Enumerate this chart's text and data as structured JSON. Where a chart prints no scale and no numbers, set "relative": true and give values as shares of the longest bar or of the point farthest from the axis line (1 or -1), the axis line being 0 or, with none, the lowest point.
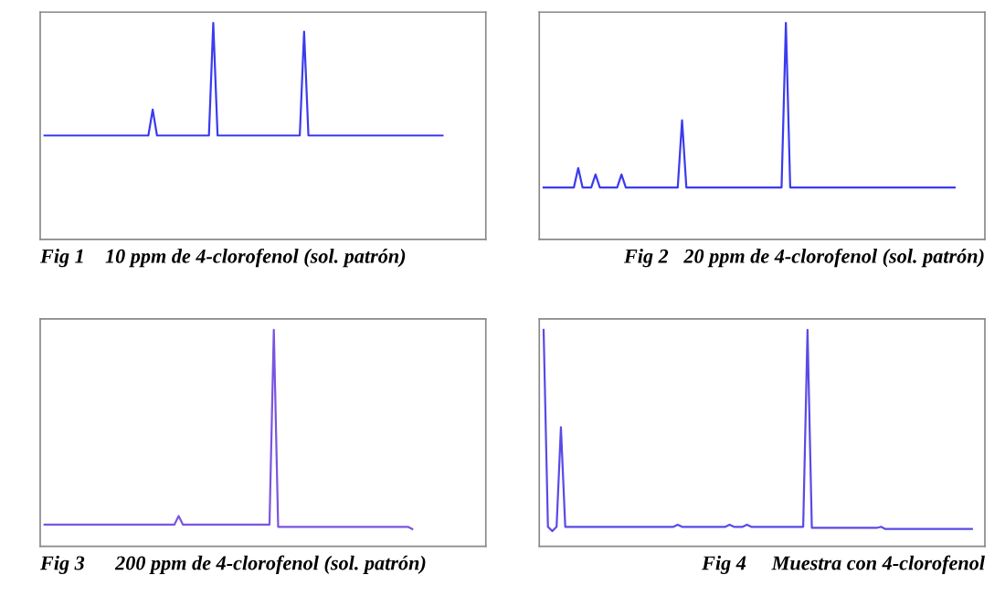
{
  "chart_data": [
    {
      "type": "line",
      "title": "Fig 1    10 ppm de 4-clorofenol (sol. patrón)",
      "relative": true,
      "categories": [
        null,
        null,
        null,
        null,
        null,
        null,
        null,
        null,
        null,
        null,
        null,
        null,
        null,
        null,
        null,
        null,
        null,
        null,
        null,
        null,
        null,
        null,
        null,
        null,
        null,
        null,
        null,
        null,
        null,
        null,
        null,
        null,
        null,
        null,
        null,
        null,
        null,
        null,
        null,
        null,
        null,
        null,
        null,
        null,
        null,
        null,
        null,
        null,
        null,
        null,
        null,
        null,
        null,
        null,
        null,
        null,
        null,
        null,
        null,
        null,
        null,
        null,
        null,
        null,
        null,
        null,
        null,
        null,
        null,
        null,
        null,
        null,
        null,
        null,
        null,
        null,
        null,
        null,
        null,
        null,
        null,
        null,
        null,
        null,
        null,
        null,
        null,
        null,
        null,
        null,
        null,
        null,
        null,
        null,
        null,
        null,
        null,
        null,
        null,
        null
      ],
      "series": [
        {
          "color": "#3b3bf0",
          "values": [
            0.48,
            0.48,
            0.48,
            0.48,
            0.48,
            0.48,
            0.48,
            0.48,
            0.48,
            0.48,
            0.48,
            0.48,
            0.48,
            0.48,
            0.48,
            0.48,
            0.48,
            0.48,
            0.48,
            0.48,
            0.48,
            0.48,
            0.48,
            0.48,
            0.48,
            0.6,
            0.48,
            0.48,
            0.48,
            0.48,
            0.48,
            0.48,
            0.48,
            0.48,
            0.48,
            0.48,
            0.48,
            0.48,
            0.48,
            1,
            0.48,
            0.48,
            0.48,
            0.48,
            0.48,
            0.48,
            0.48,
            0.48,
            0.48,
            0.48,
            0.48,
            0.48,
            0.48,
            0.48,
            0.48,
            0.48,
            0.48,
            0.48,
            0.48,
            0.48,
            0.96,
            0.48,
            0.48,
            0.48,
            0.48,
            0.48,
            0.48,
            0.48,
            0.48,
            0.48,
            0.48,
            0.48,
            0.48,
            0.48,
            0.48,
            0.48,
            0.48,
            0.48,
            0.48,
            0.48,
            0.48,
            0.48,
            0.48,
            0.48,
            0.48,
            0.48,
            0.48,
            0.48,
            0.48,
            0.48,
            0.48,
            0.48,
            0.48,
            null,
            null,
            null,
            null,
            null,
            null,
            null
          ]
        }
      ]
    },
    {
      "type": "line",
      "title": "Fig 2   20 ppm de 4-clorofenol (sol. patrón)",
      "relative": true,
      "categories": [
        null,
        null,
        null,
        null,
        null,
        null,
        null,
        null,
        null,
        null,
        null,
        null,
        null,
        null,
        null,
        null,
        null,
        null,
        null,
        null,
        null,
        null,
        null,
        null,
        null,
        null,
        null,
        null,
        null,
        null,
        null,
        null,
        null,
        null,
        null,
        null,
        null,
        null,
        null,
        null,
        null,
        null,
        null,
        null,
        null,
        null,
        null,
        null,
        null,
        null,
        null,
        null,
        null,
        null,
        null,
        null,
        null,
        null,
        null,
        null,
        null,
        null,
        null,
        null,
        null,
        null,
        null,
        null,
        null,
        null,
        null,
        null,
        null,
        null,
        null,
        null,
        null,
        null,
        null,
        null,
        null,
        null,
        null,
        null,
        null,
        null,
        null,
        null,
        null,
        null,
        null,
        null,
        null,
        null,
        null,
        null,
        null,
        null,
        null,
        null
      ],
      "series": [
        {
          "color": "#3b3bf0",
          "values": [
            0.24,
            0.24,
            0.24,
            0.24,
            0.24,
            0.24,
            0.24,
            0.24,
            0.33,
            0.24,
            0.24,
            0.24,
            0.3,
            0.24,
            0.24,
            0.24,
            0.24,
            0.24,
            0.3,
            0.24,
            0.24,
            0.24,
            0.24,
            0.24,
            0.24,
            0.24,
            0.24,
            0.24,
            0.24,
            0.24,
            0.24,
            0.24,
            0.55,
            0.24,
            0.24,
            0.24,
            0.24,
            0.24,
            0.24,
            0.24,
            0.24,
            0.24,
            0.24,
            0.24,
            0.24,
            0.24,
            0.24,
            0.24,
            0.24,
            0.24,
            0.24,
            0.24,
            0.24,
            0.24,
            0.24,
            0.24,
            1,
            0.24,
            0.24,
            0.24,
            0.24,
            0.24,
            0.24,
            0.24,
            0.24,
            0.24,
            0.24,
            0.24,
            0.24,
            0.24,
            0.24,
            0.24,
            0.24,
            0.24,
            0.24,
            0.24,
            0.24,
            0.24,
            0.24,
            0.24,
            0.24,
            0.24,
            0.24,
            0.24,
            0.24,
            0.24,
            0.24,
            0.24,
            0.24,
            0.24,
            0.24,
            0.24,
            0.24,
            0.24,
            0.24,
            0.24,
            null,
            null,
            null,
            null
          ]
        }
      ]
    },
    {
      "type": "line",
      "title": "Fig 3      200 ppm de 4-clorofenol (sol. patrón)",
      "relative": true,
      "categories": [
        null,
        null,
        null,
        null,
        null,
        null,
        null,
        null,
        null,
        null,
        null,
        null,
        null,
        null,
        null,
        null,
        null,
        null,
        null,
        null,
        null,
        null,
        null,
        null,
        null,
        null,
        null,
        null,
        null,
        null,
        null,
        null,
        null,
        null,
        null,
        null,
        null,
        null,
        null,
        null,
        null,
        null,
        null,
        null,
        null,
        null,
        null,
        null,
        null,
        null,
        null,
        null,
        null,
        null,
        null,
        null,
        null,
        null,
        null,
        null,
        null,
        null,
        null,
        null,
        null,
        null,
        null,
        null,
        null,
        null,
        null,
        null,
        null,
        null,
        null,
        null,
        null,
        null,
        null,
        null,
        null,
        null,
        null,
        null,
        null,
        null,
        null,
        null,
        null,
        null,
        null,
        null,
        null,
        null,
        null,
        null,
        null,
        null,
        null,
        null
      ],
      "series": [
        {
          "color": "#7a55e0",
          "values": [
            0.1,
            0.1,
            0.1,
            0.1,
            0.1,
            0.1,
            0.1,
            0.1,
            0.1,
            0.1,
            0.1,
            0.1,
            0.1,
            0.1,
            0.1,
            0.1,
            0.1,
            0.1,
            0.1,
            0.1,
            0.1,
            0.1,
            0.1,
            0.1,
            0.1,
            0.1,
            0.1,
            0.1,
            0.1,
            0.1,
            0.1,
            0.14,
            0.1,
            0.1,
            0.1,
            0.1,
            0.1,
            0.1,
            0.1,
            0.1,
            0.1,
            0.1,
            0.1,
            0.1,
            0.1,
            0.1,
            0.1,
            0.1,
            0.1,
            0.1,
            0.1,
            0.1,
            0.1,
            1,
            0.09,
            0.09,
            0.09,
            0.09,
            0.09,
            0.09,
            0.09,
            0.09,
            0.09,
            0.09,
            0.09,
            0.09,
            0.09,
            0.09,
            0.09,
            0.09,
            0.09,
            0.09,
            0.09,
            0.09,
            0.09,
            0.09,
            0.09,
            0.09,
            0.09,
            0.09,
            0.09,
            0.09,
            0.09,
            0.09,
            0.09,
            0.08,
            null,
            null,
            null,
            null,
            null,
            null,
            null,
            null,
            null,
            null,
            null,
            null,
            null,
            null
          ]
        }
      ]
    },
    {
      "type": "line",
      "title": "Fig 4     Muestra con 4-clorofenol",
      "relative": true,
      "categories": [
        null,
        null,
        null,
        null,
        null,
        null,
        null,
        null,
        null,
        null,
        null,
        null,
        null,
        null,
        null,
        null,
        null,
        null,
        null,
        null,
        null,
        null,
        null,
        null,
        null,
        null,
        null,
        null,
        null,
        null,
        null,
        null,
        null,
        null,
        null,
        null,
        null,
        null,
        null,
        null,
        null,
        null,
        null,
        null,
        null,
        null,
        null,
        null,
        null,
        null,
        null,
        null,
        null,
        null,
        null,
        null,
        null,
        null,
        null,
        null,
        null,
        null,
        null,
        null,
        null,
        null,
        null,
        null,
        null,
        null,
        null,
        null,
        null,
        null,
        null,
        null,
        null,
        null,
        null,
        null,
        null,
        null,
        null,
        null,
        null,
        null,
        null,
        null,
        null,
        null,
        null,
        null,
        null,
        null,
        null,
        null,
        null,
        null,
        null,
        null
      ],
      "series": [
        {
          "color": "#5a4ae6",
          "values": [
            1,
            0.09,
            0.07,
            0.09,
            0.55,
            0.09,
            0.09,
            0.09,
            0.09,
            0.09,
            0.09,
            0.09,
            0.09,
            0.09,
            0.09,
            0.09,
            0.09,
            0.09,
            0.09,
            0.09,
            0.09,
            0.09,
            0.09,
            0.09,
            0.09,
            0.09,
            0.09,
            0.09,
            0.09,
            0.09,
            0.09,
            0.1,
            0.09,
            0.09,
            0.09,
            0.09,
            0.09,
            0.09,
            0.09,
            0.09,
            0.09,
            0.09,
            0.09,
            0.1,
            0.09,
            0.09,
            0.09,
            0.1,
            0.09,
            0.09,
            0.09,
            0.09,
            0.09,
            0.09,
            0.09,
            0.09,
            0.09,
            0.09,
            0.09,
            0.09,
            0.09,
            1,
            0.085,
            0.085,
            0.085,
            0.085,
            0.085,
            0.085,
            0.085,
            0.085,
            0.085,
            0.085,
            0.085,
            0.085,
            0.085,
            0.085,
            0.085,
            0.085,
            0.09,
            0.08,
            0.08,
            0.08,
            0.08,
            0.08,
            0.08,
            0.08,
            0.08,
            0.08,
            0.08,
            0.08,
            0.08,
            0.08,
            0.08,
            0.08,
            0.08,
            0.08,
            0.08,
            0.08,
            0.08,
            0.08
          ]
        }
      ]
    }
  ]
}
